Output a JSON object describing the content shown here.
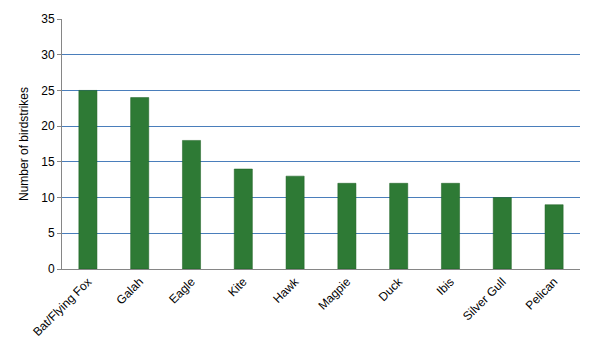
{
  "chart_data": {
    "type": "bar",
    "y_label": "Number of birdstrikes",
    "categories": [
      "Bat/Flying Fox",
      "Galah",
      "Eagle",
      "Kite",
      "Hawk",
      "Magpie",
      "Duck",
      "Ibis",
      "Silver Gull",
      "Pelican"
    ],
    "values": [
      25,
      24,
      18,
      14,
      13,
      12,
      12,
      12,
      10,
      9
    ],
    "color": "#2e7a35",
    "ylim": [
      0,
      35
    ],
    "yticks": [
      0,
      5,
      10,
      15,
      20,
      25,
      30,
      35
    ],
    "grid": true
  }
}
